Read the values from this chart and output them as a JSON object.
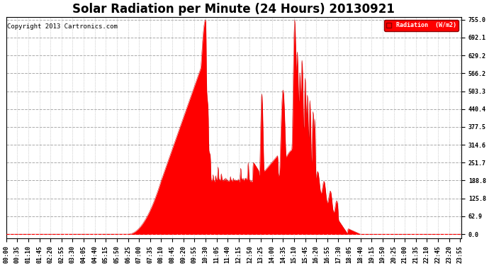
{
  "title": "Solar Radiation per Minute (24 Hours) 20130921",
  "copyright": "Copyright 2013 Cartronics.com",
  "legend_label": "Radiation  (W/m2)",
  "ytick_values": [
    0.0,
    62.9,
    125.8,
    188.8,
    251.7,
    314.6,
    377.5,
    440.4,
    503.3,
    566.2,
    629.2,
    692.1,
    755.0
  ],
  "ymax": 755.0,
  "fill_color": "#FF0000",
  "line_color": "#CC0000",
  "bg_color": "#FFFFFF",
  "hgrid_color": "#AAAAAA",
  "vgrid_color": "#AAAAAA",
  "title_fontsize": 12,
  "tick_fontsize": 6,
  "copyright_fontsize": 6.5
}
